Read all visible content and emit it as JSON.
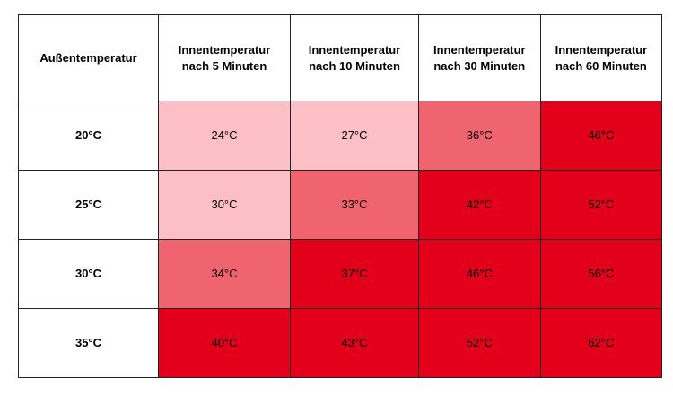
{
  "table": {
    "header": [
      "Außentemperatur",
      "Innentemperatur nach 5 Minuten",
      "Innentemperatur nach 10 Minuten",
      "Innentemperatur nach 30 Minuten",
      "Innentemperatur nach 60 Minuten"
    ],
    "rows": [
      {
        "label": "20°C",
        "cells": [
          {
            "text": "24°C",
            "color": "#fbbfc5"
          },
          {
            "text": "27°C",
            "color": "#fbbfc5"
          },
          {
            "text": "36°C",
            "color": "#f0646f"
          },
          {
            "text": "46°C",
            "color": "#e2001a"
          }
        ]
      },
      {
        "label": "25°C",
        "cells": [
          {
            "text": "30°C",
            "color": "#fbbfc5"
          },
          {
            "text": "33°C",
            "color": "#f0646f"
          },
          {
            "text": "42°C",
            "color": "#e2001a"
          },
          {
            "text": "52°C",
            "color": "#e2001a"
          }
        ]
      },
      {
        "label": "30°C",
        "cells": [
          {
            "text": "34°C",
            "color": "#f0646f"
          },
          {
            "text": "37°C",
            "color": "#e2001a"
          },
          {
            "text": "46°C",
            "color": "#e2001a"
          },
          {
            "text": "56°C",
            "color": "#e2001a"
          }
        ]
      },
      {
        "label": "35°C",
        "cells": [
          {
            "text": "40°C",
            "color": "#e2001a"
          },
          {
            "text": "43°C",
            "color": "#e2001a"
          },
          {
            "text": "52°C",
            "color": "#e2001a"
          },
          {
            "text": "62°C",
            "color": "#e2001a"
          }
        ]
      }
    ]
  }
}
